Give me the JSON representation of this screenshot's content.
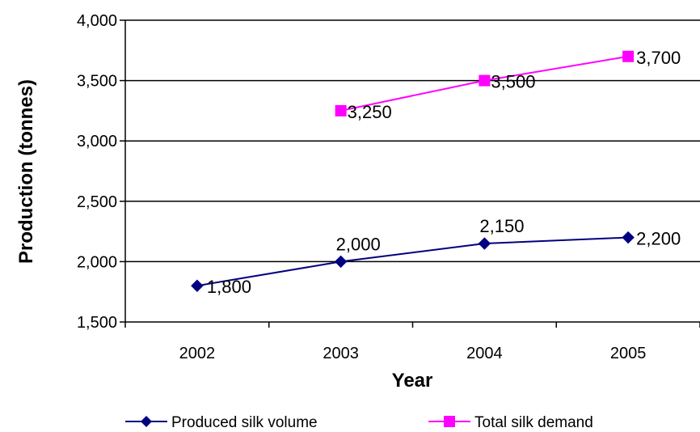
{
  "chart_data": {
    "type": "line",
    "title": "",
    "xlabel": "Year",
    "ylabel": "Production (tonnes)",
    "categories": [
      "2002",
      "2003",
      "2004",
      "2005"
    ],
    "ylim": [
      1500,
      4000
    ],
    "yticks": [
      1500,
      2000,
      2500,
      3000,
      3500,
      4000
    ],
    "ytick_labels": [
      "1,500",
      "2,000",
      "2,500",
      "3,000",
      "3,500",
      "4,000"
    ],
    "grid": "horizontal",
    "legend_position": "bottom",
    "series": [
      {
        "name": "Produced silk volume",
        "color": "#000080",
        "marker": "diamond",
        "x": [
          "2002",
          "2003",
          "2004",
          "2005"
        ],
        "values": [
          1800,
          2000,
          2150,
          2200
        ],
        "labels": [
          "1,800",
          "2,000",
          "2,150",
          "2,200"
        ]
      },
      {
        "name": "Total silk demand",
        "color": "#FF00FF",
        "marker": "square",
        "x": [
          "2003",
          "2004",
          "2005"
        ],
        "values": [
          3250,
          3500,
          3700
        ],
        "labels": [
          "3,250",
          "3,500",
          "3,700"
        ]
      }
    ]
  }
}
